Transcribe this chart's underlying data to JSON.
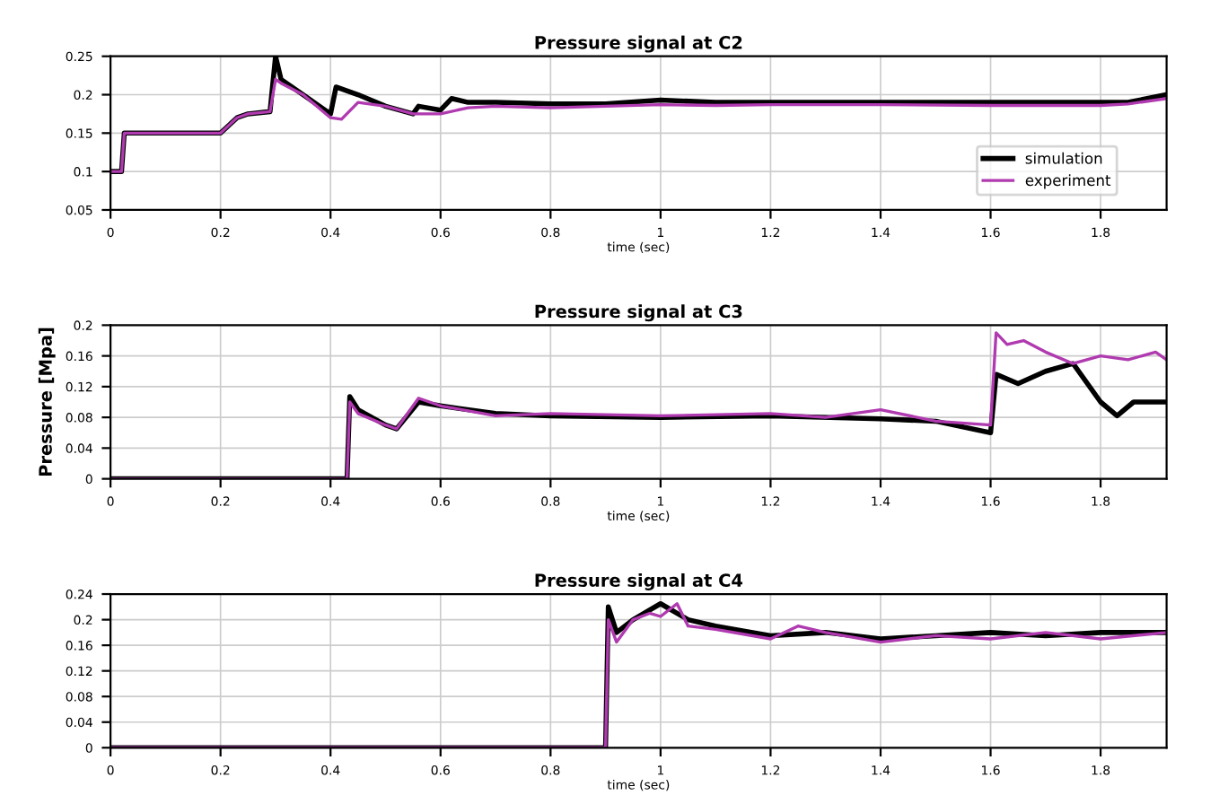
{
  "chart_data": [
    {
      "type": "line",
      "title": "Pressure signal at C2",
      "xlabel": "time (sec)",
      "xlim": [
        0,
        1.92
      ],
      "xticks": [
        {
          "value": 0,
          "label": "0"
        },
        {
          "value": 0.2,
          "label": "0.2"
        },
        {
          "value": 0.4,
          "label": "0.4"
        },
        {
          "value": 0.6,
          "label": "0.6"
        },
        {
          "value": 0.8,
          "label": "0.8"
        },
        {
          "value": 1,
          "label": "1"
        },
        {
          "value": 1.2,
          "label": "1.2"
        },
        {
          "value": 1.4,
          "label": "1.4"
        },
        {
          "value": 1.6,
          "label": "1.6"
        },
        {
          "value": 1.8,
          "label": "1.8"
        }
      ],
      "ylim": [
        0.05,
        0.25
      ],
      "yticks": [
        0.05,
        0.1,
        0.15,
        0.2,
        0.25
      ],
      "grid": true,
      "legend": "bottom right",
      "series": [
        {
          "name": "simulation",
          "color": "#000000",
          "x": [
            0,
            0.02,
            0.025,
            0.1,
            0.2,
            0.23,
            0.25,
            0.29,
            0.3,
            0.31,
            0.35,
            0.4,
            0.41,
            0.45,
            0.5,
            0.55,
            0.56,
            0.6,
            0.62,
            0.65,
            0.7,
            0.8,
            0.9,
            1.0,
            1.1,
            1.2,
            1.4,
            1.6,
            1.8,
            1.85,
            1.92
          ],
          "values": [
            0.1,
            0.1,
            0.15,
            0.15,
            0.15,
            0.17,
            0.175,
            0.178,
            0.25,
            0.22,
            0.2,
            0.175,
            0.21,
            0.2,
            0.185,
            0.175,
            0.185,
            0.18,
            0.195,
            0.19,
            0.19,
            0.188,
            0.188,
            0.193,
            0.19,
            0.19,
            0.19,
            0.19,
            0.19,
            0.19,
            0.2
          ]
        },
        {
          "name": "experiment",
          "color": "#b03ab0",
          "x": [
            0,
            0.02,
            0.025,
            0.1,
            0.2,
            0.23,
            0.25,
            0.29,
            0.3,
            0.31,
            0.35,
            0.4,
            0.42,
            0.45,
            0.5,
            0.55,
            0.6,
            0.65,
            0.7,
            0.8,
            0.9,
            1.0,
            1.1,
            1.2,
            1.4,
            1.6,
            1.8,
            1.85,
            1.92
          ],
          "values": [
            0.1,
            0.1,
            0.15,
            0.15,
            0.15,
            0.17,
            0.175,
            0.178,
            0.22,
            0.215,
            0.2,
            0.17,
            0.168,
            0.19,
            0.185,
            0.175,
            0.175,
            0.183,
            0.185,
            0.183,
            0.185,
            0.187,
            0.186,
            0.187,
            0.187,
            0.186,
            0.186,
            0.188,
            0.195
          ]
        }
      ]
    },
    {
      "type": "line",
      "title": "Pressure signal at C3",
      "ylabel": "Pressure [Mpa]",
      "xlabel": "time (sec)",
      "xlim": [
        0,
        1.92
      ],
      "xticks": [
        {
          "value": 0,
          "label": "0"
        },
        {
          "value": 0.2,
          "label": "0.2"
        },
        {
          "value": 0.4,
          "label": "0.4"
        },
        {
          "value": 0.6,
          "label": "0.6"
        },
        {
          "value": 0.8,
          "label": "0.8"
        },
        {
          "value": 1,
          "label": "1"
        },
        {
          "value": 1.2,
          "label": "1.2"
        },
        {
          "value": 1.4,
          "label": "1.4"
        },
        {
          "value": 1.6,
          "label": "1.6"
        },
        {
          "value": 1.8,
          "label": "1.8"
        }
      ],
      "ylim": [
        0,
        0.2
      ],
      "yticks": [
        0,
        0.04,
        0.08,
        0.12,
        0.16,
        0.2
      ],
      "grid": true,
      "series": [
        {
          "color": "#000000",
          "x": [
            0,
            0.43,
            0.435,
            0.45,
            0.5,
            0.52,
            0.56,
            0.6,
            0.7,
            0.8,
            1.0,
            1.2,
            1.4,
            1.5,
            1.6,
            1.61,
            1.65,
            1.7,
            1.75,
            1.8,
            1.83,
            1.86,
            1.92
          ],
          "values": [
            0,
            0,
            0.107,
            0.09,
            0.07,
            0.065,
            0.1,
            0.095,
            0.085,
            0.082,
            0.08,
            0.082,
            0.078,
            0.075,
            0.06,
            0.136,
            0.124,
            0.14,
            0.15,
            0.1,
            0.082,
            0.1,
            0.1
          ]
        },
        {
          "color": "#b03ab0",
          "x": [
            0,
            0.43,
            0.435,
            0.45,
            0.5,
            0.52,
            0.56,
            0.6,
            0.7,
            0.8,
            1.0,
            1.2,
            1.3,
            1.4,
            1.5,
            1.6,
            1.61,
            1.63,
            1.66,
            1.7,
            1.75,
            1.8,
            1.85,
            1.9,
            1.92
          ],
          "values": [
            0,
            0,
            0.1,
            0.085,
            0.07,
            0.065,
            0.105,
            0.095,
            0.082,
            0.085,
            0.082,
            0.085,
            0.08,
            0.09,
            0.075,
            0.07,
            0.19,
            0.175,
            0.18,
            0.165,
            0.15,
            0.16,
            0.155,
            0.165,
            0.155
          ]
        }
      ]
    },
    {
      "type": "line",
      "title": "Pressure signal at C4",
      "xlabel": "time (sec)",
      "xlim": [
        0,
        1.92
      ],
      "xticks": [
        {
          "value": 0,
          "label": "0"
        },
        {
          "value": 0.2,
          "label": "0.2"
        },
        {
          "value": 0.4,
          "label": "0.4"
        },
        {
          "value": 0.6,
          "label": "0.6"
        },
        {
          "value": 0.8,
          "label": "0.8"
        },
        {
          "value": 1,
          "label": "1"
        },
        {
          "value": 1.2,
          "label": "1.2"
        },
        {
          "value": 1.4,
          "label": "1.4"
        },
        {
          "value": 1.6,
          "label": "1.6"
        },
        {
          "value": 1.8,
          "label": "1.8"
        }
      ],
      "ylim": [
        0,
        0.24
      ],
      "yticks": [
        0,
        0.04,
        0.08,
        0.12,
        0.16,
        0.2,
        0.24
      ],
      "grid": true,
      "series": [
        {
          "color": "#000000",
          "x": [
            0,
            0.9,
            0.905,
            0.92,
            0.95,
            1.0,
            1.05,
            1.1,
            1.2,
            1.3,
            1.4,
            1.5,
            1.6,
            1.7,
            1.8,
            1.92
          ],
          "values": [
            0,
            0,
            0.22,
            0.18,
            0.2,
            0.225,
            0.2,
            0.19,
            0.175,
            0.18,
            0.17,
            0.175,
            0.18,
            0.175,
            0.18,
            0.18
          ]
        },
        {
          "color": "#b03ab0",
          "x": [
            0,
            0.9,
            0.905,
            0.92,
            0.95,
            0.98,
            1.0,
            1.03,
            1.05,
            1.1,
            1.2,
            1.25,
            1.3,
            1.4,
            1.5,
            1.6,
            1.7,
            1.8,
            1.92
          ],
          "values": [
            0,
            0,
            0.2,
            0.165,
            0.2,
            0.21,
            0.205,
            0.225,
            0.19,
            0.185,
            0.17,
            0.19,
            0.18,
            0.165,
            0.175,
            0.17,
            0.18,
            0.17,
            0.18
          ]
        }
      ]
    }
  ]
}
